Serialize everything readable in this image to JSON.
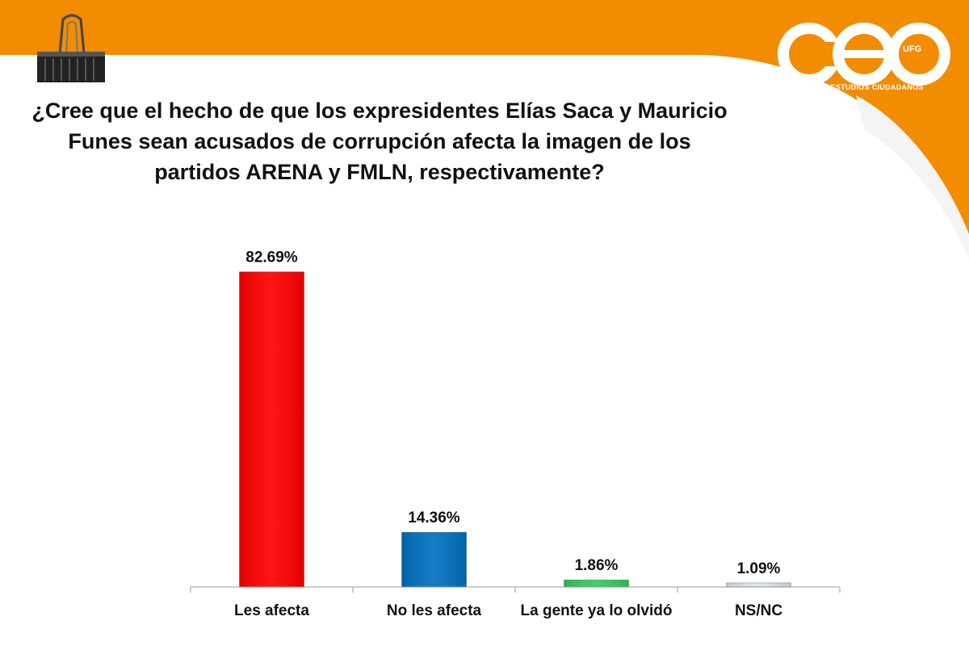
{
  "title": "¿Cree que el hecho de que los expresidentes Elías Saca y Mauricio Funes sean acusados de corrupción afecta la imagen de los partidos ARENA y FMLN, respectivamente?",
  "logo": {
    "ufg": "UFG",
    "subtitle": "CENTRO DE ESTUDIOS CIUDADANOS"
  },
  "colors": {
    "orange": "#F28C00",
    "red": "#FF0000",
    "blue": "#0070C0",
    "green": "#2ECC5C",
    "light": "#D9E4F2"
  },
  "chart_data": {
    "type": "bar",
    "categories": [
      "Les afecta",
      "No les afecta",
      "La gente ya lo olvidó",
      "NS/NC"
    ],
    "values": [
      82.69,
      14.36,
      1.86,
      1.09
    ],
    "value_labels": [
      "82.69%",
      "14.36%",
      "1.86%",
      "1.09%"
    ],
    "bar_colors": [
      "#FF0000",
      "#0070C0",
      "#2ECC5C",
      "#D9E4F2"
    ],
    "ylim": [
      0,
      100
    ],
    "grid": false,
    "legend": "none"
  }
}
